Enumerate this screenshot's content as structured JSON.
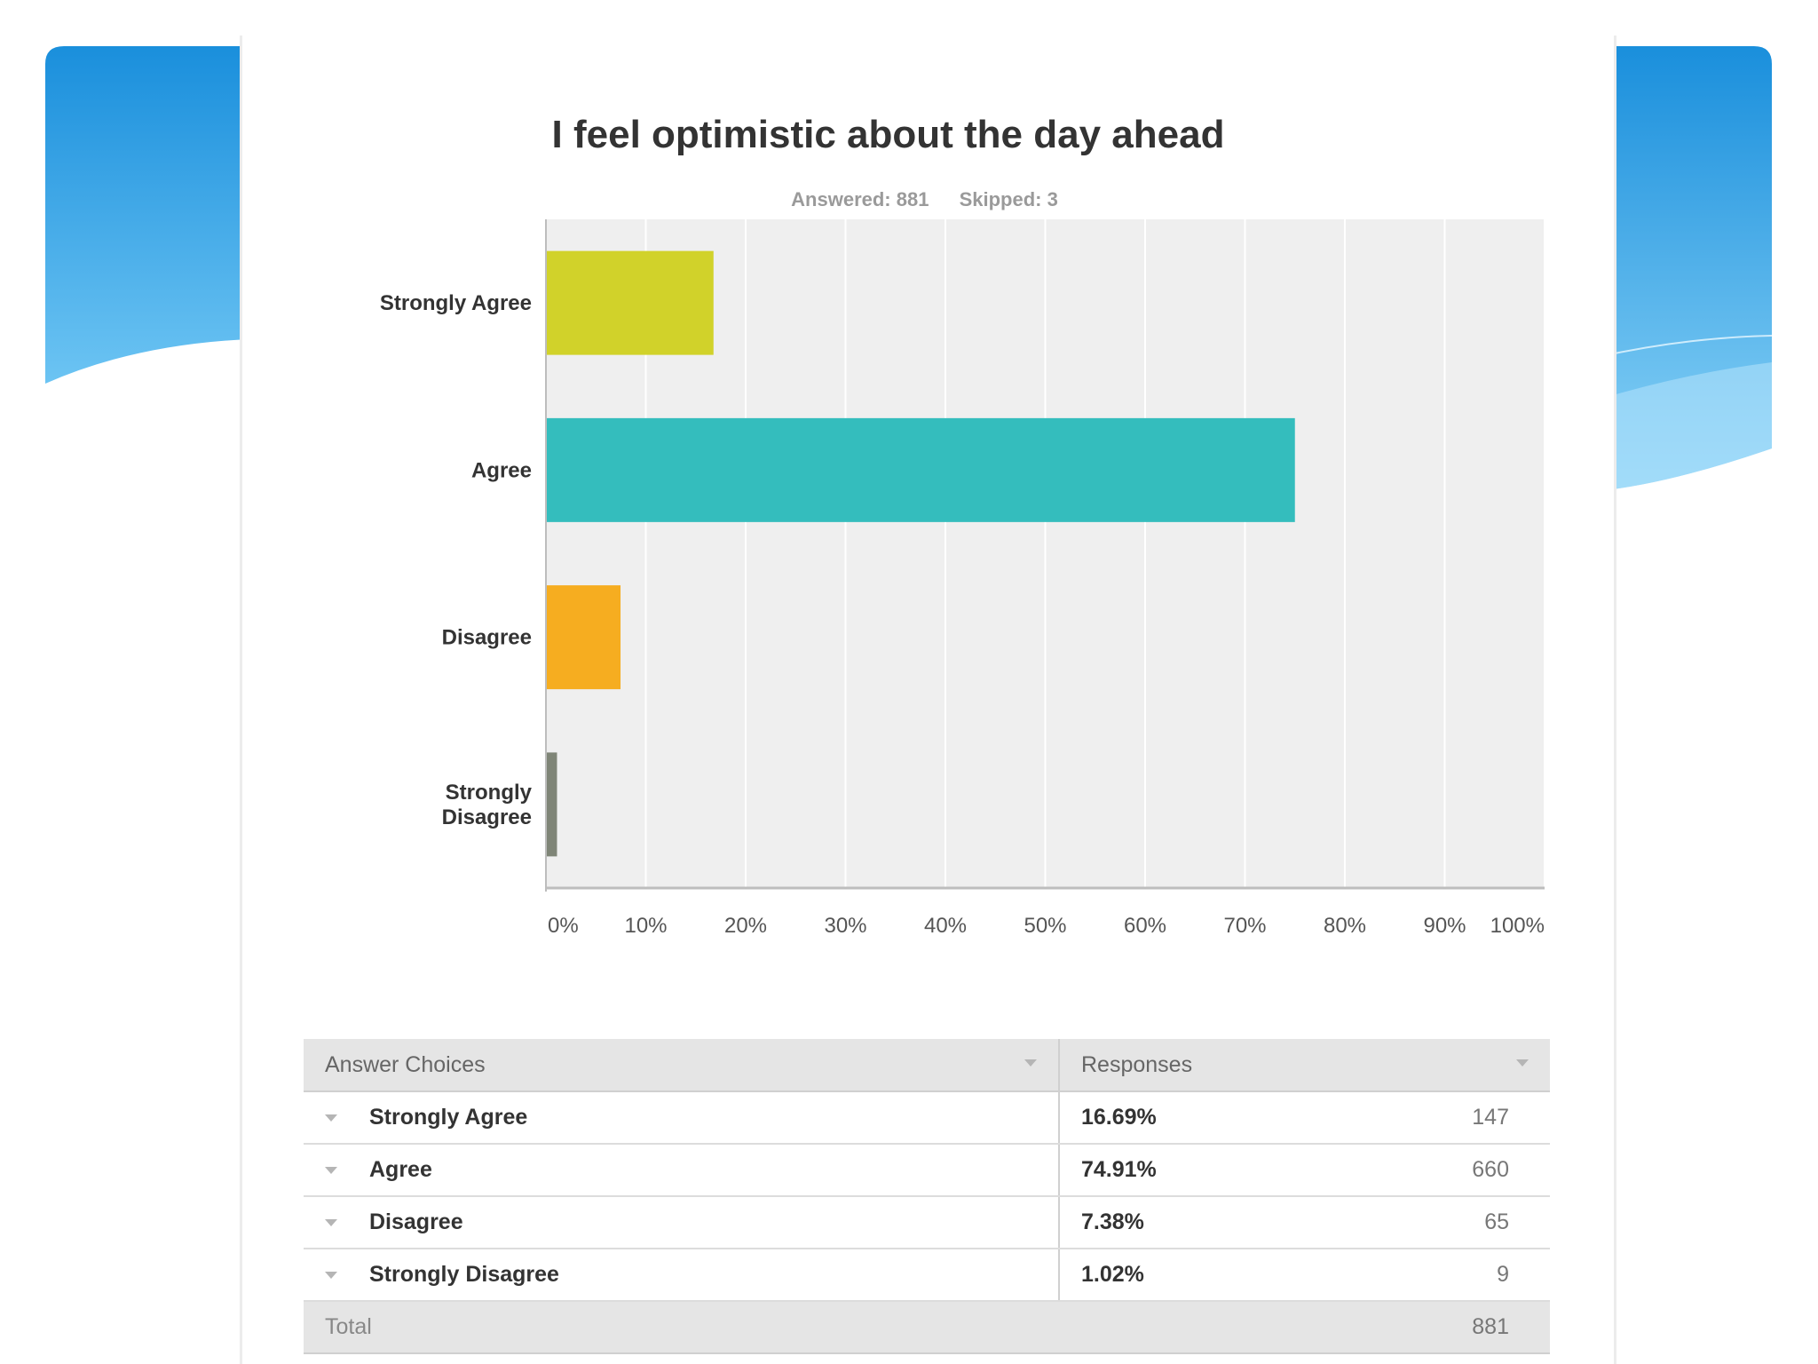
{
  "colors": {
    "wave_dark": "#1e95e0",
    "wave_light": "#8fd2f7",
    "grid": "#ffffff",
    "plot_bg": "#efefef"
  },
  "header": {
    "title": "I feel optimistic about the day ahead",
    "answered": "Answered: 881",
    "skipped": "Skipped: 3"
  },
  "chart_data": {
    "type": "bar",
    "orientation": "horizontal",
    "title": "I feel optimistic about the day ahead",
    "categories": [
      "Strongly Agree",
      "Agree",
      "Disagree",
      "Strongly Disagree"
    ],
    "category_lines": [
      [
        "Strongly Agree"
      ],
      [
        "Agree"
      ],
      [
        "Disagree"
      ],
      [
        "Strongly",
        "Disagree"
      ]
    ],
    "values": [
      16.69,
      74.91,
      7.38,
      1.02
    ],
    "colors": [
      "#d1d22a",
      "#34bdbd",
      "#f6ad20",
      "#7f8577"
    ],
    "xlim": [
      0,
      100
    ],
    "xticks": [
      "0%",
      "10%",
      "20%",
      "30%",
      "40%",
      "50%",
      "60%",
      "70%",
      "80%",
      "90%",
      "100%"
    ],
    "grid": true
  },
  "table": {
    "headers": [
      "Answer Choices",
      "Responses"
    ],
    "rows": [
      {
        "choice": "Strongly Agree",
        "percent": "16.69%",
        "count": "147"
      },
      {
        "choice": "Agree",
        "percent": "74.91%",
        "count": "660"
      },
      {
        "choice": "Disagree",
        "percent": "7.38%",
        "count": "65"
      },
      {
        "choice": "Strongly Disagree",
        "percent": "1.02%",
        "count": "9"
      }
    ],
    "total_label": "Total",
    "total_count": "881"
  }
}
